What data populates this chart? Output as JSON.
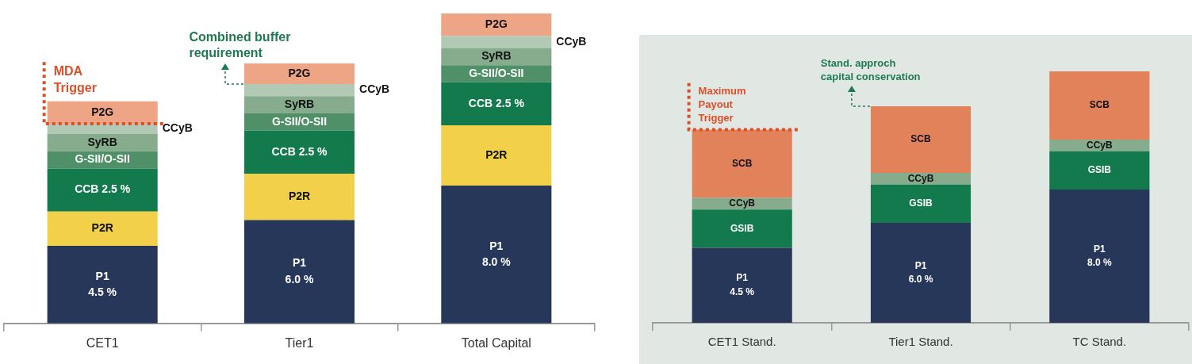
{
  "chart_data": [
    {
      "type": "bar",
      "stacked": true,
      "categories": [
        "CET1",
        "Tier1",
        "Total Capital"
      ],
      "ylim": [
        0,
        18
      ],
      "tick_labels": "x",
      "series": [
        {
          "name": "P1",
          "color": "#27375a",
          "values": [
            4.5,
            6.0,
            8.0
          ],
          "value_labels": [
            "4.5 %",
            "6.0 %",
            "8.0 %"
          ]
        },
        {
          "name": "P2R",
          "color": "#f2d04a",
          "values": [
            2.0,
            2.7,
            3.5
          ]
        },
        {
          "name": "CCB 2.5 %",
          "color": "#137a4e",
          "values": [
            2.5,
            2.5,
            2.5
          ]
        },
        {
          "name": "G-SII/O-SII",
          "color": "#4f9068",
          "values": [
            1.0,
            1.0,
            1.0
          ]
        },
        {
          "name": "SyRB",
          "color": "#86ac8d",
          "values": [
            1.0,
            1.0,
            1.0
          ]
        },
        {
          "name": "CCyB",
          "color": "#b2c9b5",
          "values": [
            0.6,
            0.7,
            0.7
          ]
        },
        {
          "name": "P2G",
          "color": "#eda585",
          "values": [
            1.3,
            1.2,
            1.3
          ]
        }
      ],
      "annotations": [
        {
          "text": "MDA Trigger",
          "x": "CET1",
          "y": 11.6
        },
        {
          "text": "Combined buffer requirement",
          "x": "Tier1",
          "y": 13.9
        }
      ],
      "legend": false
    },
    {
      "type": "bar",
      "stacked": true,
      "categories": [
        "CET1 Stand.",
        "Tier1 Stand.",
        "TC Stand."
      ],
      "ylim": [
        0,
        15.1
      ],
      "tick_labels": "x",
      "series": [
        {
          "name": "P1",
          "color": "#27375a",
          "values": [
            4.5,
            6.0,
            8.0
          ],
          "value_labels": [
            "4.5 %",
            "6.0 %",
            "8.0 %"
          ]
        },
        {
          "name": "GSIB",
          "color": "#137a4e",
          "values": [
            2.3,
            2.3,
            2.3
          ]
        },
        {
          "name": "CCyB",
          "color": "#86ac8d",
          "values": [
            0.7,
            0.7,
            0.7
          ]
        },
        {
          "name": "SCB",
          "color": "#e2825a",
          "values": [
            4.1,
            4.0,
            4.1
          ]
        }
      ],
      "annotations": [
        {
          "text": "Maximum Payout Trigger",
          "x": "CET1 Stand.",
          "y": 11.6
        },
        {
          "text": "Stand. approch capital conservation",
          "x": "Tier1 Stand.",
          "y": 13.0
        }
      ],
      "legend": false
    }
  ]
}
